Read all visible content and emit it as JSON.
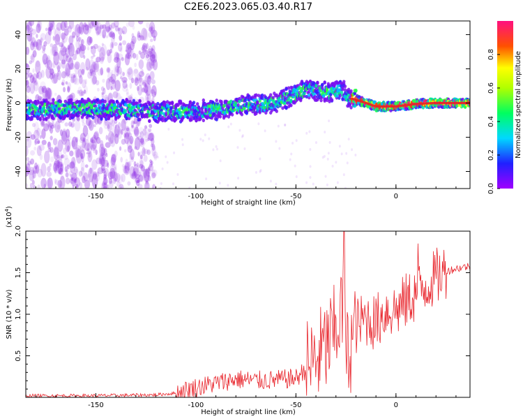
{
  "title": "C2E6.2023.065.03.40.R17",
  "chart_data": [
    {
      "type": "heatmap",
      "xlabel": "Height of straight line (km)",
      "ylabel": "Frequency (Hz)",
      "xlim": [
        -185,
        37
      ],
      "ylim": [
        -50,
        48
      ],
      "xticks": [
        -150,
        -100,
        -50,
        0
      ],
      "yticks": [
        -40,
        -20,
        0,
        20,
        40
      ],
      "colorbar": {
        "label": "Normalized spectral amplitude",
        "range": [
          0,
          1
        ],
        "ticks": [
          "0.0",
          "0.2",
          "0.4",
          "0.6",
          "0.8"
        ],
        "colormap": "rainbow (purple-blue-cyan-green-yellow-red-pink)"
      },
      "ridge": {
        "description": "dominant frequency trace vs height",
        "x": [
          -185,
          -150,
          -120,
          -100,
          -80,
          -60,
          -45,
          -35,
          -27,
          -24,
          -20,
          -15,
          -10,
          0,
          10,
          20,
          37
        ],
        "y": [
          -4,
          -3,
          -5,
          -5,
          -2,
          0,
          8,
          6,
          8,
          3,
          2,
          0,
          -2,
          -2,
          -0.5,
          0,
          0
        ]
      },
      "scatter_region": {
        "x": [
          -185,
          -120
        ],
        "description": "scattered low-amplitude noise"
      }
    },
    {
      "type": "line",
      "xlabel": "Height of straight line (km)",
      "ylabel": "SNR (10 * v/v)",
      "yscale_label": "(x10",
      "yscale_exp": "4",
      "xlim": [
        -185,
        37
      ],
      "ylim": [
        0,
        2.0
      ],
      "xticks": [
        -150,
        -100,
        -50,
        0
      ],
      "yticks": [
        "0.5",
        "1.0",
        "1.5",
        "2.0"
      ],
      "series": [
        {
          "color": "#e8232a",
          "x": [
            -185,
            -150,
            -120,
            -110,
            -100,
            -90,
            -80,
            -70,
            -60,
            -50,
            -40,
            -35,
            -30,
            -27,
            -25,
            -20,
            -15,
            -10,
            -5,
            0,
            5,
            10,
            15,
            20,
            25,
            30,
            37
          ],
          "y": [
            0.02,
            0.02,
            0.03,
            0.05,
            0.12,
            0.17,
            0.22,
            0.2,
            0.21,
            0.23,
            0.45,
            0.6,
            0.8,
            1.1,
            0.45,
            0.85,
            0.95,
            0.9,
            1.05,
            1.05,
            1.15,
            1.25,
            1.35,
            1.45,
            1.52,
            1.55,
            1.58
          ]
        }
      ]
    }
  ]
}
